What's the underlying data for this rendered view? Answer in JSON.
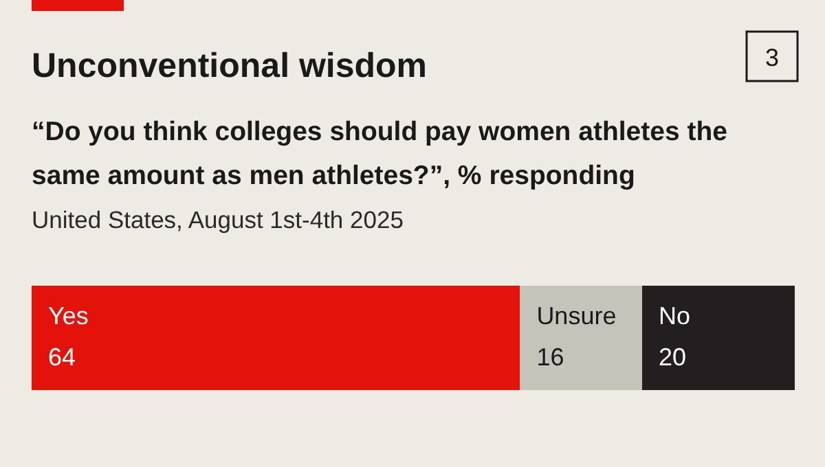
{
  "chart_data": {
    "type": "bar",
    "title": "Unconventional wisdom",
    "subtitle": "“Do you think colleges should pay women athletes the same amount as men athletes?”, % responding",
    "annotations": [
      "United States, August 1st-4th 2025",
      "3"
    ],
    "orientation": "horizontal",
    "stacked": true,
    "categories": [
      null
    ],
    "xlim": [
      0,
      100
    ],
    "data_labels": true,
    "series": [
      {
        "name": "Yes",
        "color": "#e3120b",
        "values": [
          64
        ]
      },
      {
        "name": "Unsure",
        "color": "#c5c4bb",
        "values": [
          16
        ]
      },
      {
        "name": "No",
        "color": "#231f20",
        "values": [
          20
        ]
      }
    ]
  }
}
